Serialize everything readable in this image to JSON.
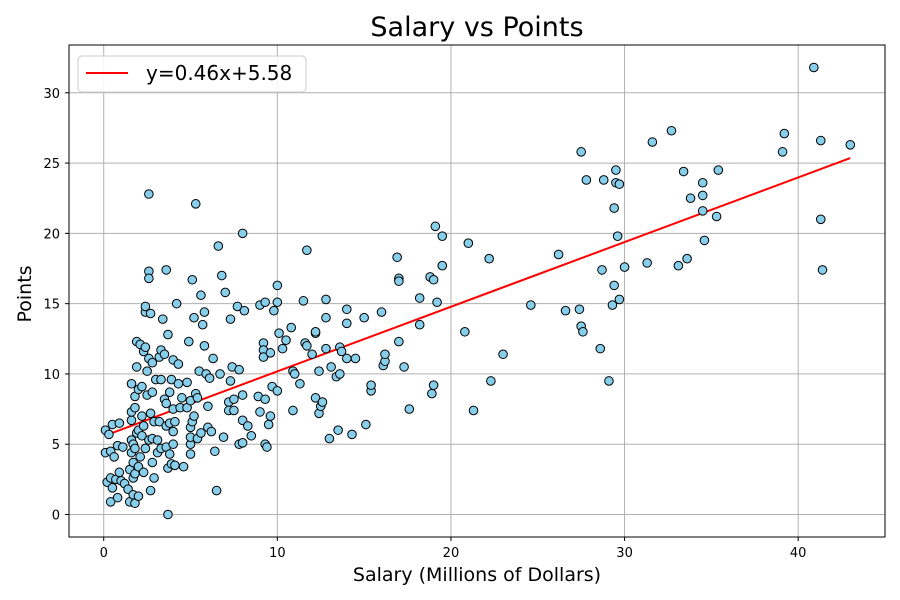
{
  "chart_data": {
    "type": "scatter",
    "title": "Salary vs Points",
    "xlabel": "Salary (Millions of Dollars)",
    "ylabel": "Points",
    "xlim": [
      -2,
      45
    ],
    "ylim": [
      -1.6,
      33.4
    ],
    "xticks": [
      0,
      10,
      20,
      30,
      40
    ],
    "yticks": [
      0,
      5,
      10,
      15,
      20,
      25,
      30
    ],
    "grid": true,
    "legend": {
      "position": "upper-left",
      "entries": [
        "y=0.46x+5.58"
      ]
    },
    "colors": {
      "point_fill": "#87ceeb",
      "point_edge": "#000000",
      "fit_line": "#ff0000",
      "grid": "#b0b0b0"
    },
    "fit_line": {
      "label": "y=0.46x+5.58",
      "slope": 0.46,
      "intercept": 5.58,
      "x_range": [
        0.1,
        43.0
      ]
    },
    "series": [
      {
        "points": [
          [
            0.1,
            6.0
          ],
          [
            0.1,
            4.4
          ],
          [
            0.2,
            2.3
          ],
          [
            0.3,
            5.7
          ],
          [
            0.4,
            4.5
          ],
          [
            0.4,
            0.9
          ],
          [
            0.4,
            2.6
          ],
          [
            0.5,
            6.4
          ],
          [
            0.5,
            1.9
          ],
          [
            0.6,
            4.1
          ],
          [
            0.7,
            2.5
          ],
          [
            0.8,
            1.2
          ],
          [
            0.8,
            4.9
          ],
          [
            0.9,
            3.0
          ],
          [
            0.9,
            6.5
          ],
          [
            1.0,
            2.4
          ],
          [
            1.1,
            4.8
          ],
          [
            1.2,
            2.2
          ],
          [
            1.4,
            1.8
          ],
          [
            1.5,
            0.9
          ],
          [
            1.5,
            3.2
          ],
          [
            1.6,
            4.4
          ],
          [
            1.6,
            5.3
          ],
          [
            1.6,
            6.7
          ],
          [
            1.6,
            7.3
          ],
          [
            1.6,
            9.3
          ],
          [
            1.7,
            1.4
          ],
          [
            1.7,
            2.6
          ],
          [
            1.7,
            3.7
          ],
          [
            1.7,
            5.0
          ],
          [
            1.8,
            0.8
          ],
          [
            1.8,
            2.9
          ],
          [
            1.8,
            4.7
          ],
          [
            1.8,
            7.6
          ],
          [
            1.8,
            8.4
          ],
          [
            1.9,
            10.5
          ],
          [
            1.9,
            12.3
          ],
          [
            1.9,
            5.8
          ],
          [
            2.0,
            1.3
          ],
          [
            2.0,
            3.4
          ],
          [
            2.0,
            6.0
          ],
          [
            2.0,
            8.9
          ],
          [
            2.1,
            12.1
          ],
          [
            2.1,
            4.1
          ],
          [
            2.2,
            5.6
          ],
          [
            2.2,
            7.0
          ],
          [
            2.2,
            9.1
          ],
          [
            2.3,
            3.0
          ],
          [
            2.3,
            11.6
          ],
          [
            2.3,
            6.3
          ],
          [
            2.4,
            14.4
          ],
          [
            2.4,
            14.8
          ],
          [
            2.4,
            11.9
          ],
          [
            2.4,
            4.7
          ],
          [
            2.5,
            8.5
          ],
          [
            2.5,
            10.2
          ],
          [
            2.6,
            5.3
          ],
          [
            2.6,
            11.1
          ],
          [
            2.6,
            17.3
          ],
          [
            2.6,
            16.8
          ],
          [
            2.6,
            22.8
          ],
          [
            2.7,
            1.7
          ],
          [
            2.7,
            14.3
          ],
          [
            2.7,
            7.2
          ],
          [
            2.8,
            3.7
          ],
          [
            2.8,
            5.4
          ],
          [
            2.8,
            8.7
          ],
          [
            2.8,
            10.8
          ],
          [
            2.9,
            2.6
          ],
          [
            2.9,
            6.6
          ],
          [
            3.0,
            9.6
          ],
          [
            3.1,
            4.4
          ],
          [
            3.1,
            5.3
          ],
          [
            3.2,
            11.2
          ],
          [
            3.2,
            6.6
          ],
          [
            3.3,
            11.7
          ],
          [
            3.3,
            9.6
          ],
          [
            3.3,
            4.7
          ],
          [
            3.4,
            13.9
          ],
          [
            3.5,
            8.2
          ],
          [
            3.5,
            11.4
          ],
          [
            3.6,
            6.3
          ],
          [
            3.6,
            17.4
          ],
          [
            3.6,
            7.9
          ],
          [
            3.6,
            4.8
          ],
          [
            3.7,
            3.3
          ],
          [
            3.7,
            12.8
          ],
          [
            3.7,
            0.0
          ],
          [
            3.8,
            4.3
          ],
          [
            3.8,
            6.5
          ],
          [
            3.8,
            8.7
          ],
          [
            3.9,
            3.6
          ],
          [
            3.9,
            9.6
          ],
          [
            4.0,
            11.0
          ],
          [
            4.0,
            7.5
          ],
          [
            4.0,
            5.9
          ],
          [
            4.0,
            5.0
          ],
          [
            4.1,
            3.5
          ],
          [
            4.1,
            6.6
          ],
          [
            4.2,
            15.0
          ],
          [
            4.3,
            10.7
          ],
          [
            4.3,
            9.3
          ],
          [
            4.4,
            7.6
          ],
          [
            4.5,
            8.3
          ],
          [
            4.6,
            3.4
          ],
          [
            4.8,
            9.4
          ],
          [
            4.8,
            7.6
          ],
          [
            4.9,
            12.3
          ],
          [
            5.0,
            4.3
          ],
          [
            5.0,
            8.1
          ],
          [
            5.0,
            5.0
          ],
          [
            5.0,
            5.5
          ],
          [
            5.0,
            6.2
          ],
          [
            5.1,
            6.6
          ],
          [
            5.1,
            16.7
          ],
          [
            5.2,
            14.0
          ],
          [
            5.2,
            7.0
          ],
          [
            5.3,
            8.6
          ],
          [
            5.3,
            22.1
          ],
          [
            5.4,
            8.3
          ],
          [
            5.4,
            5.4
          ],
          [
            5.5,
            10.2
          ],
          [
            5.6,
            15.6
          ],
          [
            5.6,
            5.8
          ],
          [
            5.7,
            13.5
          ],
          [
            5.8,
            12.0
          ],
          [
            5.8,
            14.4
          ],
          [
            5.9,
            10.0
          ],
          [
            6.0,
            7.7
          ],
          [
            6.0,
            6.2
          ],
          [
            6.1,
            9.7
          ],
          [
            6.2,
            5.9
          ],
          [
            6.3,
            11.1
          ],
          [
            6.4,
            4.5
          ],
          [
            6.5,
            1.7
          ],
          [
            6.6,
            19.1
          ],
          [
            6.7,
            10.0
          ],
          [
            6.8,
            17.0
          ],
          [
            6.9,
            5.5
          ],
          [
            7.0,
            15.8
          ],
          [
            7.2,
            8.0
          ],
          [
            7.2,
            7.4
          ],
          [
            7.3,
            9.5
          ],
          [
            7.3,
            13.9
          ],
          [
            7.4,
            10.5
          ],
          [
            7.5,
            8.2
          ],
          [
            7.5,
            7.4
          ],
          [
            7.7,
            14.8
          ],
          [
            7.8,
            5.0
          ],
          [
            7.8,
            10.3
          ],
          [
            8.0,
            6.7
          ],
          [
            8.0,
            5.1
          ],
          [
            8.0,
            20.0
          ],
          [
            8.0,
            8.5
          ],
          [
            8.1,
            14.5
          ],
          [
            8.3,
            6.3
          ],
          [
            8.5,
            5.6
          ],
          [
            8.9,
            8.4
          ],
          [
            9.0,
            7.3
          ],
          [
            9.0,
            14.9
          ],
          [
            9.2,
            12.2
          ],
          [
            9.2,
            11.7
          ],
          [
            9.2,
            11.2
          ],
          [
            9.3,
            8.2
          ],
          [
            9.3,
            5.0
          ],
          [
            9.3,
            15.1
          ],
          [
            9.4,
            4.8
          ],
          [
            9.5,
            6.4
          ],
          [
            9.6,
            11.5
          ],
          [
            9.6,
            7.0
          ],
          [
            9.7,
            9.1
          ],
          [
            9.8,
            14.5
          ],
          [
            10.0,
            15.1
          ],
          [
            10.0,
            16.3
          ],
          [
            10.0,
            8.8
          ],
          [
            10.1,
            12.9
          ],
          [
            10.3,
            11.8
          ],
          [
            10.5,
            12.4
          ],
          [
            10.8,
            13.3
          ],
          [
            10.9,
            7.4
          ],
          [
            10.9,
            10.2
          ],
          [
            11.0,
            10.0
          ],
          [
            11.3,
            9.3
          ],
          [
            11.5,
            15.2
          ],
          [
            11.6,
            12.2
          ],
          [
            11.7,
            18.8
          ],
          [
            11.7,
            12.0
          ],
          [
            12.0,
            11.4
          ],
          [
            12.2,
            8.3
          ],
          [
            12.2,
            12.9
          ],
          [
            12.2,
            13.0
          ],
          [
            12.4,
            7.2
          ],
          [
            12.4,
            10.2
          ],
          [
            12.5,
            7.7
          ],
          [
            12.6,
            8.0
          ],
          [
            12.8,
            15.3
          ],
          [
            12.8,
            14.0
          ],
          [
            12.8,
            11.8
          ],
          [
            13.0,
            5.4
          ],
          [
            13.1,
            10.5
          ],
          [
            13.4,
            9.8
          ],
          [
            13.5,
            6.0
          ],
          [
            13.6,
            11.9
          ],
          [
            13.6,
            10.0
          ],
          [
            13.7,
            11.6
          ],
          [
            14.0,
            14.6
          ],
          [
            14.0,
            11.1
          ],
          [
            14.0,
            13.6
          ],
          [
            14.3,
            5.7
          ],
          [
            14.5,
            11.1
          ],
          [
            15.0,
            14.0
          ],
          [
            15.1,
            6.4
          ],
          [
            15.4,
            8.8
          ],
          [
            15.4,
            9.2
          ],
          [
            16.0,
            14.4
          ],
          [
            16.1,
            10.6
          ],
          [
            16.2,
            10.9
          ],
          [
            16.2,
            11.4
          ],
          [
            16.9,
            18.3
          ],
          [
            17.0,
            16.8
          ],
          [
            17.0,
            16.6
          ],
          [
            17.0,
            12.3
          ],
          [
            17.3,
            10.5
          ],
          [
            17.6,
            7.5
          ],
          [
            18.2,
            13.5
          ],
          [
            18.2,
            15.4
          ],
          [
            18.8,
            16.9
          ],
          [
            18.9,
            8.6
          ],
          [
            19.0,
            16.7
          ],
          [
            19.0,
            9.2
          ],
          [
            19.1,
            20.5
          ],
          [
            19.2,
            15.1
          ],
          [
            19.5,
            19.8
          ],
          [
            19.5,
            17.7
          ],
          [
            20.8,
            13.0
          ],
          [
            21.0,
            19.3
          ],
          [
            21.3,
            7.4
          ],
          [
            22.2,
            18.2
          ],
          [
            22.3,
            9.5
          ],
          [
            23.0,
            11.4
          ],
          [
            24.6,
            14.9
          ],
          [
            26.2,
            18.5
          ],
          [
            26.6,
            14.5
          ],
          [
            27.4,
            14.6
          ],
          [
            27.5,
            25.8
          ],
          [
            27.5,
            13.4
          ],
          [
            27.6,
            13.0
          ],
          [
            27.8,
            23.8
          ],
          [
            28.6,
            11.8
          ],
          [
            28.7,
            17.4
          ],
          [
            28.8,
            23.8
          ],
          [
            29.1,
            9.5
          ],
          [
            29.3,
            14.9
          ],
          [
            29.4,
            16.3
          ],
          [
            29.4,
            21.8
          ],
          [
            29.5,
            24.5
          ],
          [
            29.5,
            23.6
          ],
          [
            29.6,
            19.8
          ],
          [
            29.7,
            23.5
          ],
          [
            29.7,
            15.3
          ],
          [
            30.0,
            17.6
          ],
          [
            31.3,
            17.9
          ],
          [
            31.6,
            26.5
          ],
          [
            32.7,
            27.3
          ],
          [
            33.1,
            17.7
          ],
          [
            33.4,
            24.4
          ],
          [
            33.6,
            18.2
          ],
          [
            33.8,
            22.5
          ],
          [
            34.5,
            23.6
          ],
          [
            34.5,
            22.7
          ],
          [
            34.5,
            21.6
          ],
          [
            34.6,
            19.5
          ],
          [
            35.3,
            21.2
          ],
          [
            35.4,
            24.5
          ],
          [
            39.1,
            25.8
          ],
          [
            39.2,
            27.1
          ],
          [
            40.9,
            31.8
          ],
          [
            41.3,
            26.6
          ],
          [
            41.3,
            21.0
          ],
          [
            41.4,
            17.4
          ],
          [
            43.0,
            26.3
          ]
        ]
      }
    ]
  }
}
